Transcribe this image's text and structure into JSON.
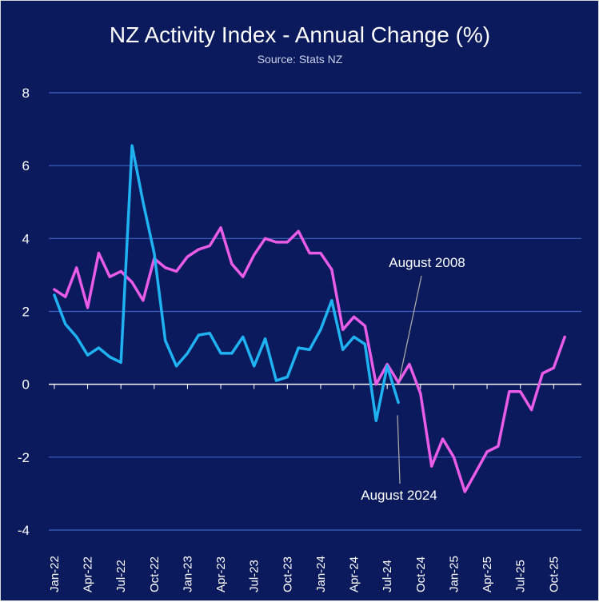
{
  "chart_data": {
    "type": "line",
    "title": "NZ Activity Index - Annual Change (%)",
    "subtitle": "Source: Stats NZ",
    "xlabel": "",
    "ylabel": "",
    "ylim": [
      -4,
      8
    ],
    "yticks": [
      -4,
      -2,
      0,
      2,
      4,
      6,
      8
    ],
    "grid": true,
    "x_tick_labels": [
      "Jan-22",
      "Apr-22",
      "Jul-22",
      "Oct-22",
      "Jan-23",
      "Apr-23",
      "Jul-23",
      "Oct-23",
      "Jan-24",
      "Apr-24",
      "Jul-24",
      "Oct-24",
      "Jan-25",
      "Apr-25",
      "Jul-25",
      "Oct-25"
    ],
    "n_periods": 48,
    "series": [
      {
        "name": "August 2008",
        "color": "#e85ce8",
        "values": [
          2.6,
          2.4,
          3.2,
          2.1,
          3.6,
          2.95,
          3.1,
          2.8,
          2.3,
          3.45,
          3.2,
          3.1,
          3.5,
          3.7,
          3.8,
          4.3,
          3.3,
          2.95,
          3.55,
          4.0,
          3.9,
          3.9,
          4.2,
          3.6,
          3.6,
          3.15,
          1.5,
          1.85,
          1.6,
          0.0,
          0.55,
          0.05,
          0.55,
          -0.25,
          -2.25,
          -1.5,
          -2.0,
          -2.95,
          -2.4,
          -1.85,
          -1.7,
          -0.2,
          -0.2,
          -0.7,
          0.3,
          0.45,
          1.3
        ]
      },
      {
        "name": "August 2024",
        "color": "#1fb2f2",
        "values": [
          2.45,
          1.65,
          1.3,
          0.8,
          1.0,
          0.75,
          0.6,
          6.55,
          5.0,
          3.6,
          1.2,
          0.5,
          0.85,
          1.35,
          1.4,
          0.85,
          0.85,
          1.3,
          0.5,
          1.25,
          0.1,
          0.2,
          1.0,
          0.95,
          1.5,
          2.3,
          0.95,
          1.3,
          1.1,
          -1.0,
          0.5,
          -0.5
        ]
      }
    ],
    "annotations": [
      {
        "text": "August 2008",
        "series": "August 2008",
        "period_index": 31,
        "value": 0.05
      },
      {
        "text": "August 2024",
        "series": "August 2024",
        "period_index": 31,
        "value": -0.5
      }
    ]
  }
}
